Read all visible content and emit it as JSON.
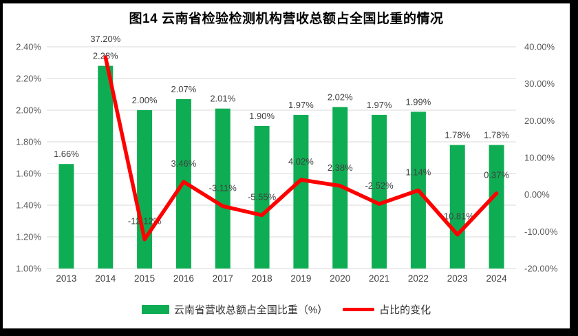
{
  "chart_data": {
    "type": "combo",
    "title": "图14 云南省检验检测机构营收总额占全国比重的情况",
    "categories": [
      "2013",
      "2014",
      "2015",
      "2016",
      "2017",
      "2018",
      "2019",
      "2020",
      "2021",
      "2022",
      "2023",
      "2024"
    ],
    "series": [
      {
        "name": "云南省营收总额占全国比重（%）",
        "type": "bar",
        "axis": "left",
        "color": "#0FAD53",
        "values": [
          1.66,
          2.28,
          2.0,
          2.07,
          2.01,
          1.9,
          1.97,
          2.02,
          1.97,
          1.99,
          1.78,
          1.78
        ],
        "labels": [
          "1.66%",
          "2.28%",
          "2.00%",
          "2.07%",
          "2.01%",
          "1.90%",
          "1.97%",
          "2.02%",
          "1.97%",
          "1.99%",
          "1.78%",
          "1.78%"
        ]
      },
      {
        "name": "占比的变化",
        "type": "line",
        "axis": "right",
        "color": "#FE0000",
        "values": [
          null,
          37.2,
          -12.12,
          3.46,
          -3.11,
          -5.55,
          4.02,
          2.38,
          -2.52,
          1.14,
          -10.81,
          0.37
        ],
        "labels": [
          null,
          "37.20%",
          "-12.12%",
          "3.46%",
          "-3.11%",
          "-5.55%",
          "4.02%",
          "2.38%",
          "-2.52%",
          "1.14%",
          "-10.81%",
          "0.37%"
        ]
      }
    ],
    "left_axis": {
      "min": 1.0,
      "max": 2.4,
      "step": 0.2,
      "tick_labels": [
        "2.40%",
        "2.20%",
        "2.00%",
        "1.80%",
        "1.60%",
        "1.40%",
        "1.20%",
        "1.00%"
      ]
    },
    "right_axis": {
      "min": -20,
      "max": 40,
      "step": 10,
      "tick_labels": [
        "40.00%",
        "30.00%",
        "20.00%",
        "10.00%",
        "0.00%",
        "-10.00%",
        "-20.00%"
      ]
    },
    "legend": [
      {
        "label": "云南省营收总额占全国比重（%）",
        "color": "#0FAD53",
        "type": "bar"
      },
      {
        "label": "占比的变化",
        "color": "#FE0000",
        "type": "line"
      }
    ],
    "grid": true,
    "legend_position": "bottom",
    "colors": {
      "gridline": "#D9D9D9",
      "tick_text": "#595959",
      "data_label": "#404040",
      "category_text": "#404040",
      "frame_border": "#000000"
    }
  }
}
